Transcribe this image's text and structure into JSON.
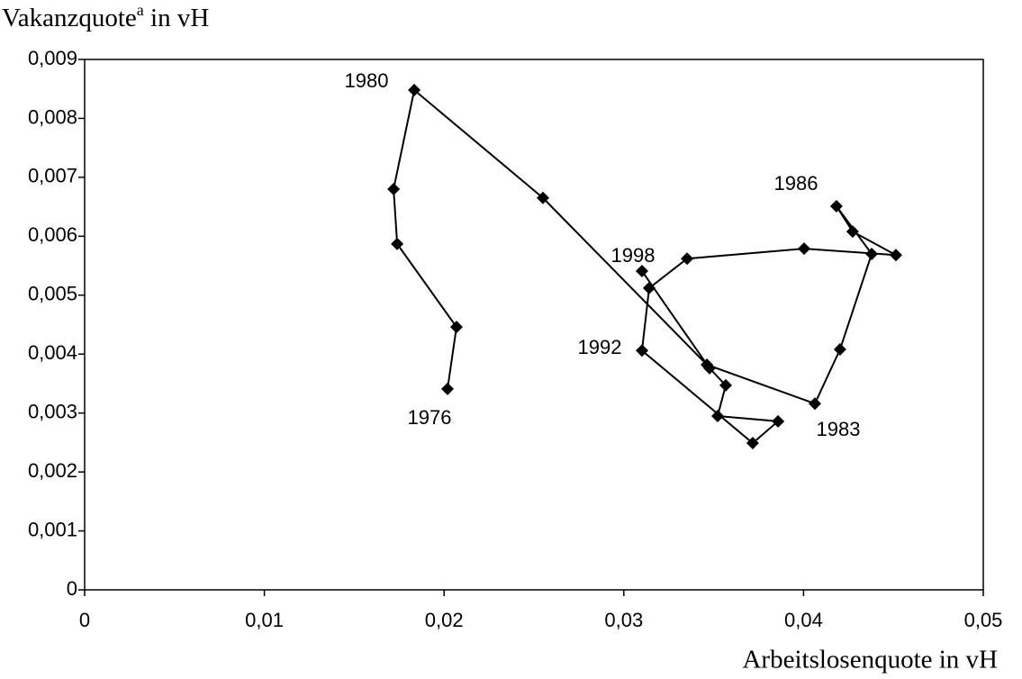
{
  "chart_data": {
    "type": "line",
    "ylabel": {
      "text": "Vakanzquote",
      "sup": "a",
      "suffix": " in vH"
    },
    "xlabel": "Arbeitslosenquote in vH",
    "color": "#000000",
    "x": [
      0.02019,
      0.02069,
      0.01739,
      0.01719,
      0.01834,
      0.0255,
      0.03462,
      0.04063,
      0.04203,
      0.04379,
      0.04183,
      0.04273,
      0.04514,
      0.04003,
      0.03352,
      0.03141,
      0.03101,
      0.03717,
      0.03858,
      0.03522,
      0.03567,
      0.03477,
      0.03101
    ],
    "values": [
      0.00341,
      0.00446,
      0.00587,
      0.0068,
      0.00848,
      0.00665,
      0.00382,
      0.00316,
      0.00408,
      0.0057,
      0.00651,
      0.00608,
      0.00568,
      0.00579,
      0.00562,
      0.00512,
      0.00406,
      0.00249,
      0.00286,
      0.00295,
      0.00347,
      0.00376,
      0.00541
    ],
    "annotations": [
      "1980",
      "1986",
      "1998",
      "1992",
      "1983",
      "1976"
    ],
    "xlim": [
      0,
      0.05
    ],
    "xticks": [
      0,
      {
        "value": 0.01,
        "label": "0,01"
      },
      {
        "value": 0.02,
        "label": "0,02"
      },
      {
        "value": 0.03,
        "label": "0,03"
      },
      {
        "value": 0.04,
        "label": "0,04"
      },
      {
        "value": 0.05,
        "label": "0,05"
      }
    ],
    "ylim": [
      0,
      0.009
    ],
    "yticks": [
      0,
      {
        "value": 0.001,
        "label": "0,001"
      },
      {
        "value": 0.002,
        "label": "0,002"
      },
      {
        "value": 0.003,
        "label": "0,003"
      },
      {
        "value": 0.004,
        "label": "0,004"
      },
      {
        "value": 0.005,
        "label": "0,005"
      },
      {
        "value": 0.006,
        "label": "0,006"
      },
      {
        "value": 0.007,
        "label": "0,007"
      },
      {
        "value": 0.008,
        "label": "0,008"
      },
      {
        "value": 0.009,
        "label": "0,009"
      }
    ],
    "grid": false
  }
}
